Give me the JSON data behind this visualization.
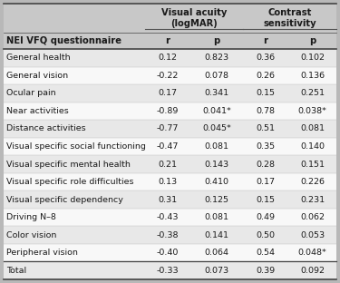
{
  "header_col": "NEI VFQ questionnaire",
  "col_groups": [
    "Visual acuity\n(logMAR)",
    "Contrast\nsensitivity"
  ],
  "col_subheaders": [
    "r",
    "p",
    "r",
    "p"
  ],
  "rows": [
    [
      "General health",
      "0.12",
      "0.823",
      "0.36",
      "0.102"
    ],
    [
      "General vision",
      "-0.22",
      "0.078",
      "0.26",
      "0.136"
    ],
    [
      "Ocular pain",
      "0.17",
      "0.341",
      "0.15",
      "0.251"
    ],
    [
      "Near activities",
      "-0.89",
      "0.041*",
      "0.78",
      "0.038*"
    ],
    [
      "Distance activities",
      "-0.77",
      "0.045*",
      "0.51",
      "0.081"
    ],
    [
      "Visual specific social functioning",
      "-0.47",
      "0.081",
      "0.35",
      "0.140"
    ],
    [
      "Visual specific mental health",
      "0.21",
      "0.143",
      "0.28",
      "0.151"
    ],
    [
      "Visual specific role difficulties",
      "0.13",
      "0.410",
      "0.17",
      "0.226"
    ],
    [
      "Visual specific dependency",
      "0.31",
      "0.125",
      "0.15",
      "0.231"
    ],
    [
      "Driving N–8",
      "-0.43",
      "0.081",
      "0.49",
      "0.062"
    ],
    [
      "Color vision",
      "-0.38",
      "0.141",
      "0.50",
      "0.053"
    ],
    [
      "Peripheral vision",
      "-0.40",
      "0.064",
      "0.54",
      "0.048*"
    ],
    [
      "Total",
      "-0.33",
      "0.073",
      "0.39",
      "0.092"
    ]
  ],
  "bg_gray_header": "#c8c8c8",
  "bg_row_light": "#e8e8e8",
  "bg_row_white": "#f8f8f8",
  "bg_outer": "#b8b8b8",
  "line_color_heavy": "#444444",
  "line_color_light": "#999999",
  "text_color": "#1a1a1a",
  "font_size": 6.8,
  "header_font_size": 7.2
}
